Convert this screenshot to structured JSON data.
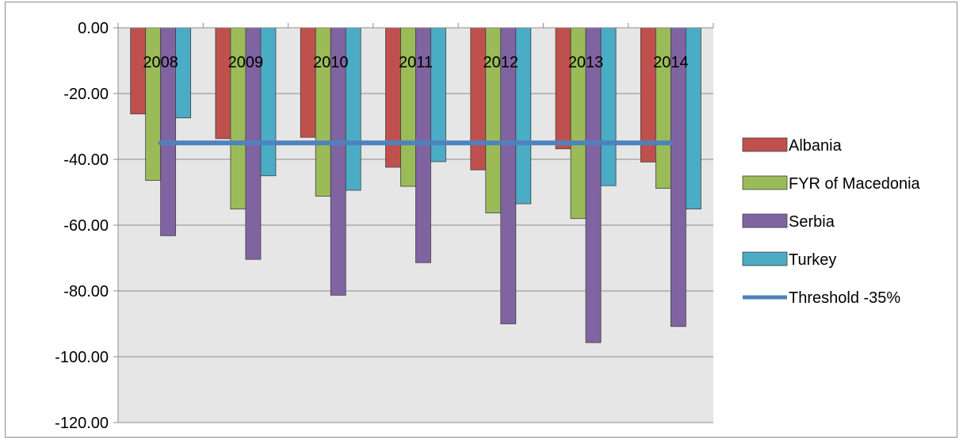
{
  "chart_data": {
    "type": "bar",
    "title": "",
    "xlabel": "",
    "ylabel": "",
    "categories": [
      "2008",
      "2009",
      "2010",
      "2011",
      "2012",
      "2013",
      "2014"
    ],
    "ylim": [
      -120,
      0
    ],
    "yticks": [
      0,
      -20,
      -40,
      -60,
      -80,
      -100,
      -120
    ],
    "ytick_labels": [
      "0.00",
      "-20.00",
      "-40.00",
      "-60.00",
      "-80.00",
      "-100.00",
      "-120.00"
    ],
    "grid": true,
    "legend_position": "right",
    "series": [
      {
        "name": "Albania",
        "color": "#c0504d",
        "values": [
          -26.2,
          -33.7,
          -33.3,
          -42.4,
          -43.2,
          -36.8,
          -40.8
        ]
      },
      {
        "name": "FYR of Macedonia",
        "color": "#9bbb59",
        "values": [
          -46.4,
          -55.1,
          -51.2,
          -48.2,
          -56.3,
          -58.0,
          -48.8
        ]
      },
      {
        "name": "Serbia",
        "color": "#8064a2",
        "values": [
          -63.2,
          -70.4,
          -81.3,
          -71.4,
          -90.0,
          -95.7,
          -90.8
        ]
      },
      {
        "name": "Turkey",
        "color": "#4bacc6",
        "values": [
          -27.4,
          -45.0,
          -49.4,
          -40.7,
          -53.5,
          -48.0,
          -55.1
        ]
      }
    ],
    "threshold": {
      "name": "Threshold -35%",
      "color": "#4f81bd",
      "value": -35
    }
  }
}
